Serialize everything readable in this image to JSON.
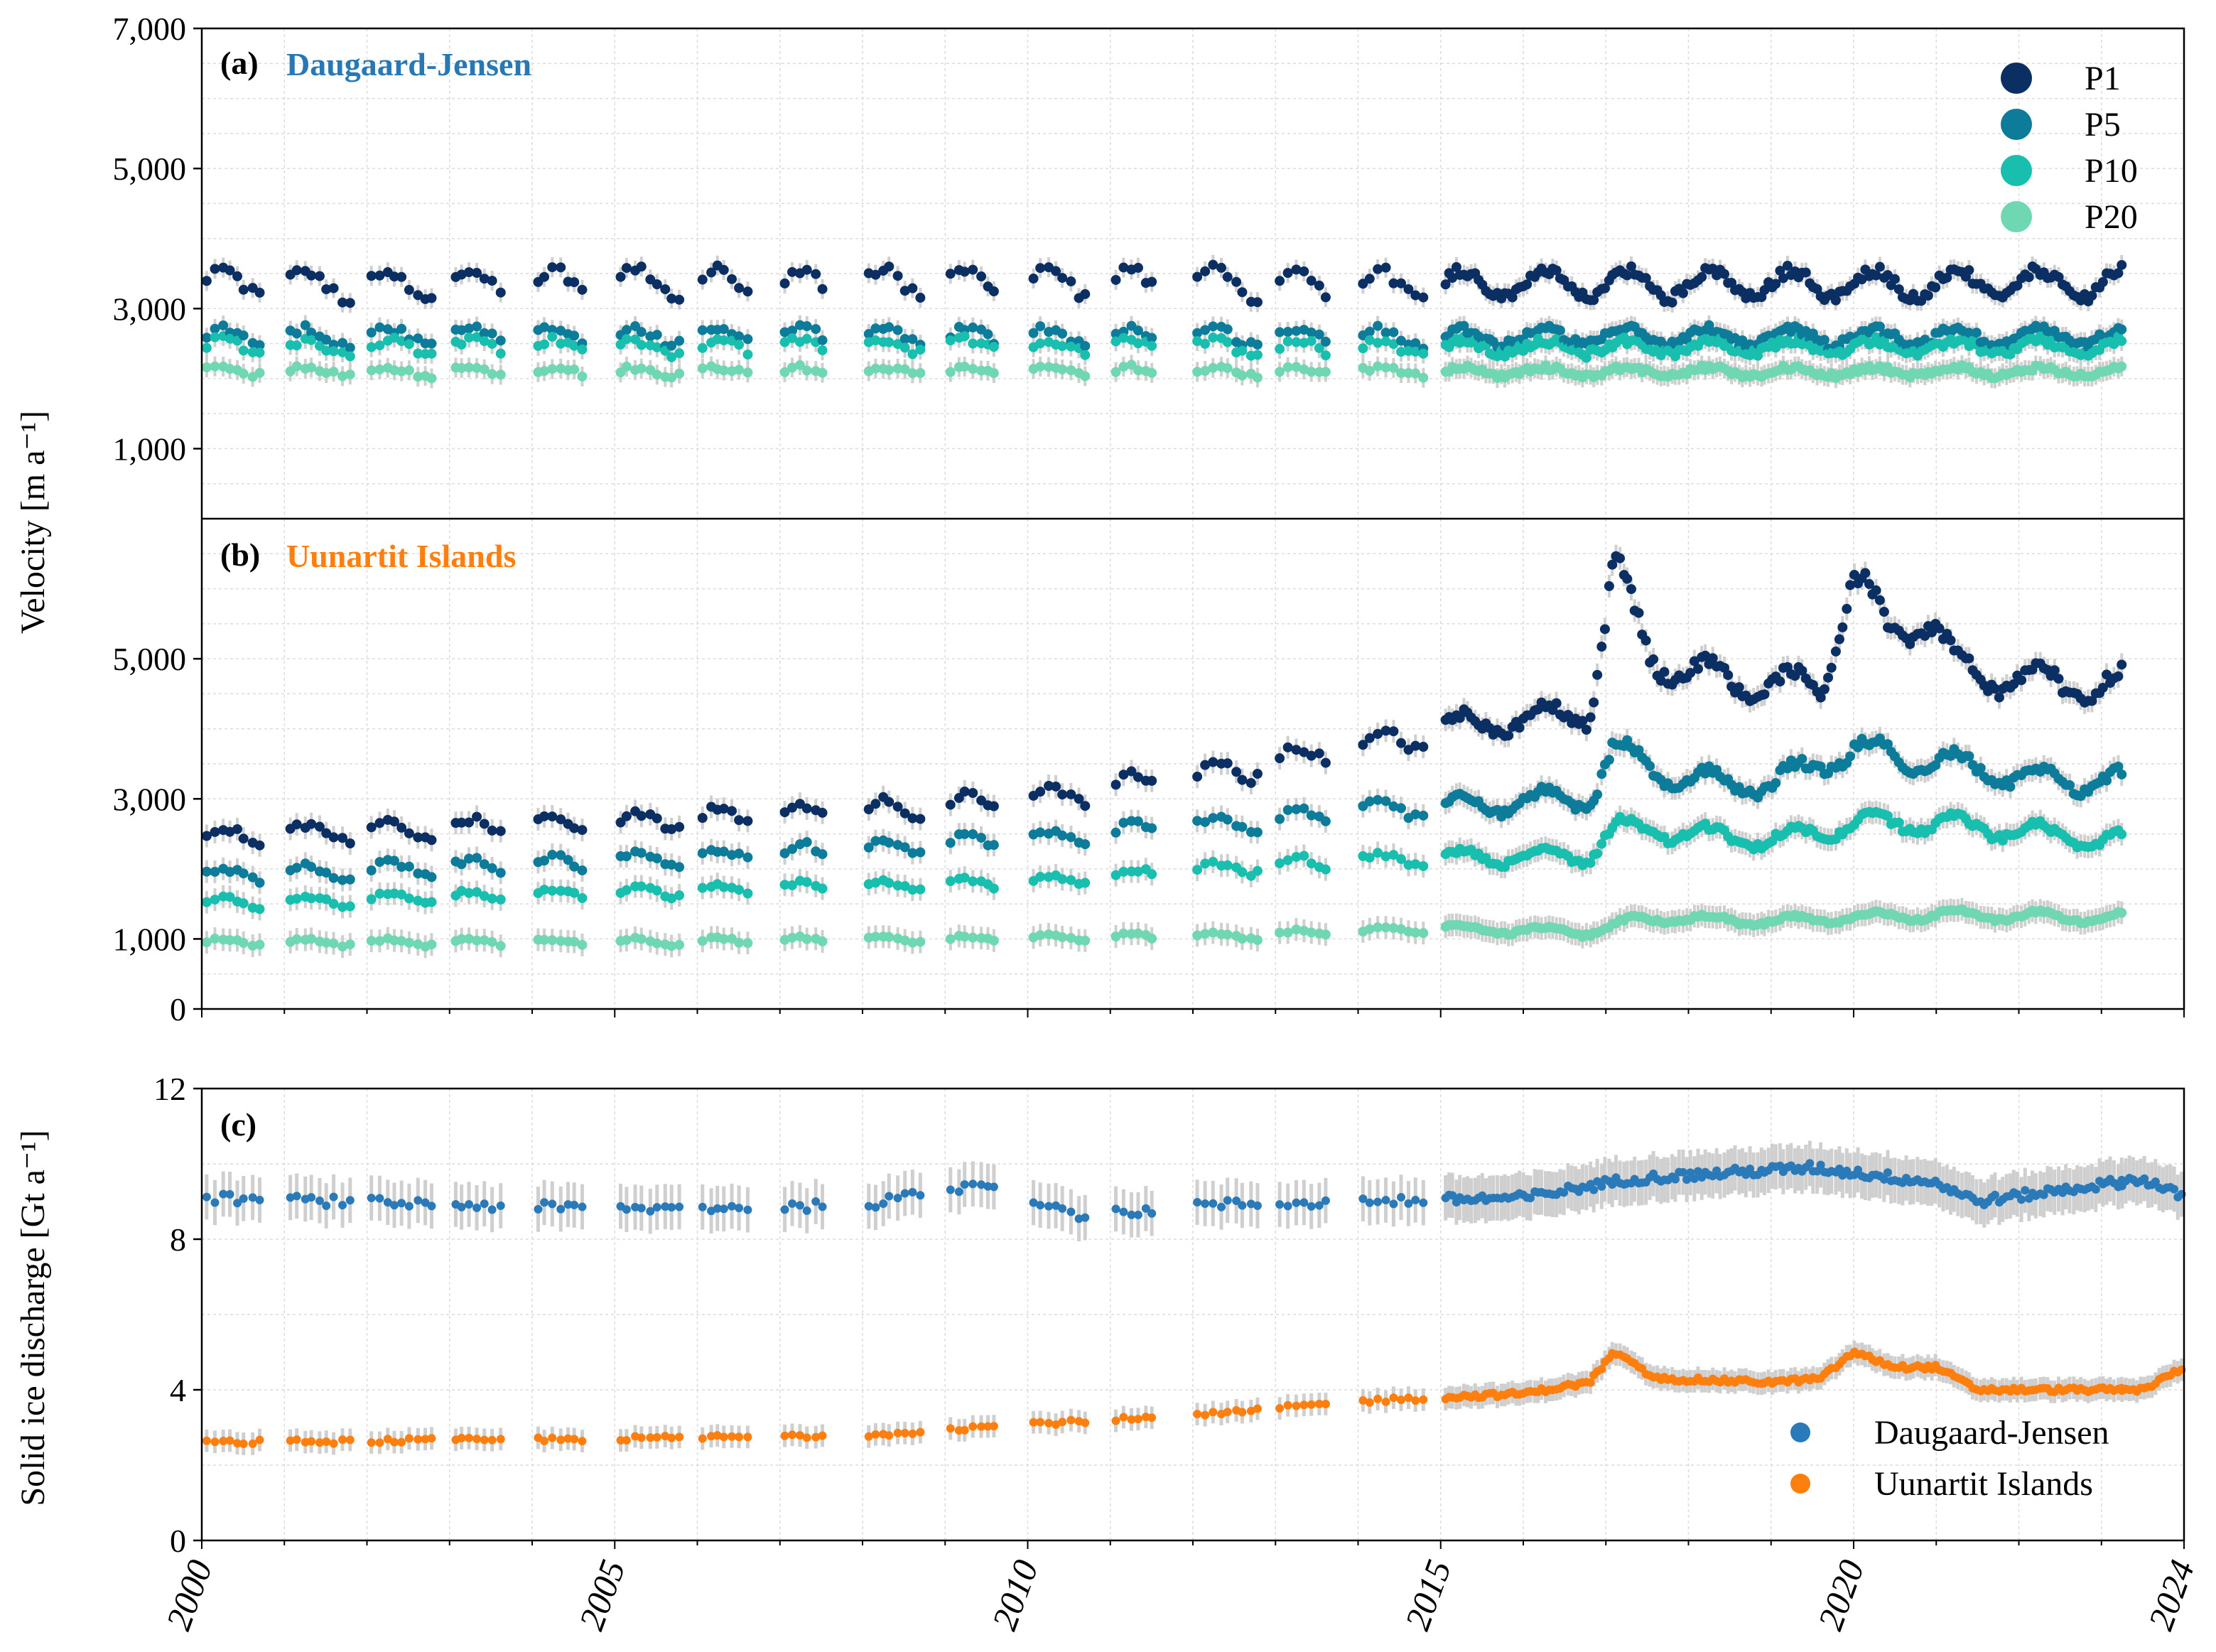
{
  "ylabel_velocity": "Velocity [m a⁻¹]",
  "ylabel_discharge": "Solid ice discharge [Gt a⁻¹]",
  "panels": {
    "a": {
      "tag": "(a)",
      "title": "Daugaard-Jensen",
      "title_color": "#2878b5"
    },
    "b": {
      "tag": "(b)",
      "title": "Uunartit Islands",
      "title_color": "#ff7f0e"
    },
    "c": {
      "tag": "(c)"
    }
  },
  "colors": {
    "P1": "#0b2e63",
    "P5": "#0c7c9a",
    "P10": "#19bfae",
    "P20": "#6fd8b2",
    "dj": "#2a7ab9",
    "ui": "#ff7f0e",
    "err": "#cfcfcf"
  },
  "chart_data": [
    {
      "type": "scatter",
      "panel": "a",
      "title": "Daugaard-Jensen",
      "ylabel": "Velocity [m a⁻¹]",
      "xlim": [
        2000,
        2024
      ],
      "ylim": [
        0,
        7000
      ],
      "yticks": [
        1000,
        3000,
        5000,
        7000
      ],
      "ytick_labels": [
        "1,000",
        "3,000",
        "5,000",
        "7,000"
      ],
      "grid": true,
      "legend": "top-right",
      "series": [
        {
          "name": "P1",
          "base": 3350,
          "amp": 200,
          "noise": 80
        },
        {
          "name": "P5",
          "base": 2600,
          "amp": 120,
          "noise": 60
        },
        {
          "name": "P10",
          "base": 2450,
          "amp": 100,
          "noise": 60
        },
        {
          "name": "P20",
          "base": 2100,
          "amp": 60,
          "noise": 40
        }
      ]
    },
    {
      "type": "scatter",
      "panel": "b",
      "title": "Uunartit Islands",
      "ylabel": "Velocity [m a⁻¹]",
      "xlim": [
        2000,
        2024
      ],
      "ylim": [
        0,
        7000
      ],
      "yticks": [
        0,
        1000,
        3000,
        5000
      ],
      "ytick_labels": [
        "0",
        "1,000",
        "3,000",
        "5,000"
      ],
      "grid": true,
      "series": [
        {
          "name": "P1",
          "trend": [
            [
              2000,
              2450
            ],
            [
              2005,
              2650
            ],
            [
              2010,
              2950
            ],
            [
              2013,
              3500
            ],
            [
              2015,
              4000
            ],
            [
              2016.8,
              4250
            ],
            [
              2017.1,
              6300
            ],
            [
              2017.5,
              5100
            ],
            [
              2018,
              4800
            ],
            [
              2019,
              4600
            ],
            [
              2019.6,
              4600
            ],
            [
              2020.0,
              6200
            ],
            [
              2020.4,
              5300
            ],
            [
              2020.9,
              5600
            ],
            [
              2021.3,
              4800
            ],
            [
              2022,
              4700
            ],
            [
              2023,
              4600
            ]
          ]
        },
        {
          "name": "P5",
          "trend": [
            [
              2000,
              1900
            ],
            [
              2005,
              2100
            ],
            [
              2010,
              2400
            ],
            [
              2013,
              2700
            ],
            [
              2015,
              2900
            ],
            [
              2016.8,
              3000
            ],
            [
              2017.1,
              3700
            ],
            [
              2017.8,
              3300
            ],
            [
              2019,
              3200
            ],
            [
              2020.0,
              3700
            ],
            [
              2021.2,
              3500
            ],
            [
              2022,
              3300
            ],
            [
              2023,
              3250
            ]
          ]
        },
        {
          "name": "P10",
          "trend": [
            [
              2000,
              1500
            ],
            [
              2005,
              1650
            ],
            [
              2010,
              1800
            ],
            [
              2013,
              2050
            ],
            [
              2015,
              2150
            ],
            [
              2016.8,
              2200
            ],
            [
              2017.1,
              2600
            ],
            [
              2018,
              2500
            ],
            [
              2019,
              2400
            ],
            [
              2020.0,
              2650
            ],
            [
              2021,
              2650
            ],
            [
              2022,
              2550
            ],
            [
              2023,
              2400
            ]
          ]
        },
        {
          "name": "P20",
          "trend": [
            [
              2000,
              950
            ],
            [
              2005,
              950
            ],
            [
              2010,
              1000
            ],
            [
              2013,
              1050
            ],
            [
              2015,
              1150
            ],
            [
              2016.8,
              1100
            ],
            [
              2017.5,
              1300
            ],
            [
              2019,
              1250
            ],
            [
              2020,
              1300
            ],
            [
              2021,
              1350
            ],
            [
              2023,
              1300
            ]
          ]
        }
      ]
    },
    {
      "type": "scatter",
      "panel": "c",
      "ylabel": "Solid ice discharge [Gt a⁻¹]",
      "xlim": [
        2000,
        2024
      ],
      "ylim": [
        0,
        12
      ],
      "yticks": [
        0,
        4,
        8,
        12
      ],
      "ytick_labels": [
        "0",
        "4",
        "8",
        "12"
      ],
      "xticks": [
        2000,
        2005,
        2010,
        2015,
        2020,
        2024
      ],
      "xtick_labels": [
        "2000",
        "2005",
        "2010",
        "2015",
        "2020",
        "2024"
      ],
      "grid": true,
      "legend": "bottom-right",
      "series": [
        {
          "name": "Daugaard-Jensen",
          "trend": [
            [
              2000,
              9.1
            ],
            [
              2005,
              8.8
            ],
            [
              2008,
              8.9
            ],
            [
              2009.5,
              9.5
            ],
            [
              2010.7,
              8.6
            ],
            [
              2012,
              8.9
            ],
            [
              2014,
              9.0
            ],
            [
              2016,
              9.1
            ],
            [
              2017.3,
              9.6
            ],
            [
              2019.5,
              9.9
            ],
            [
              2021,
              9.5
            ],
            [
              2021.5,
              9.0
            ],
            [
              2023.5,
              9.6
            ],
            [
              2024,
              9.1
            ]
          ]
        },
        {
          "name": "Uunartit Islands",
          "trend": [
            [
              2000,
              2.6
            ],
            [
              2005,
              2.7
            ],
            [
              2008,
              2.8
            ],
            [
              2010,
              3.1
            ],
            [
              2012,
              3.3
            ],
            [
              2014,
              3.7
            ],
            [
              2016,
              3.9
            ],
            [
              2016.8,
              4.2
            ],
            [
              2017.1,
              5.0
            ],
            [
              2017.6,
              4.3
            ],
            [
              2019,
              4.2
            ],
            [
              2019.6,
              4.3
            ],
            [
              2020.0,
              5.0
            ],
            [
              2020.5,
              4.6
            ],
            [
              2021.0,
              4.6
            ],
            [
              2021.5,
              4.0
            ],
            [
              2023.5,
              4.0
            ],
            [
              2024,
              4.6
            ]
          ]
        }
      ]
    }
  ],
  "legend_a": [
    {
      "label": "P1",
      "color": "#0b2e63"
    },
    {
      "label": "P5",
      "color": "#0c7c9a"
    },
    {
      "label": "P10",
      "color": "#19bfae"
    },
    {
      "label": "P20",
      "color": "#6fd8b2"
    }
  ],
  "legend_c": [
    {
      "label": "Daugaard-Jensen",
      "color": "#2a7ab9"
    },
    {
      "label": "Uunartit Islands",
      "color": "#ff7f0e"
    }
  ]
}
